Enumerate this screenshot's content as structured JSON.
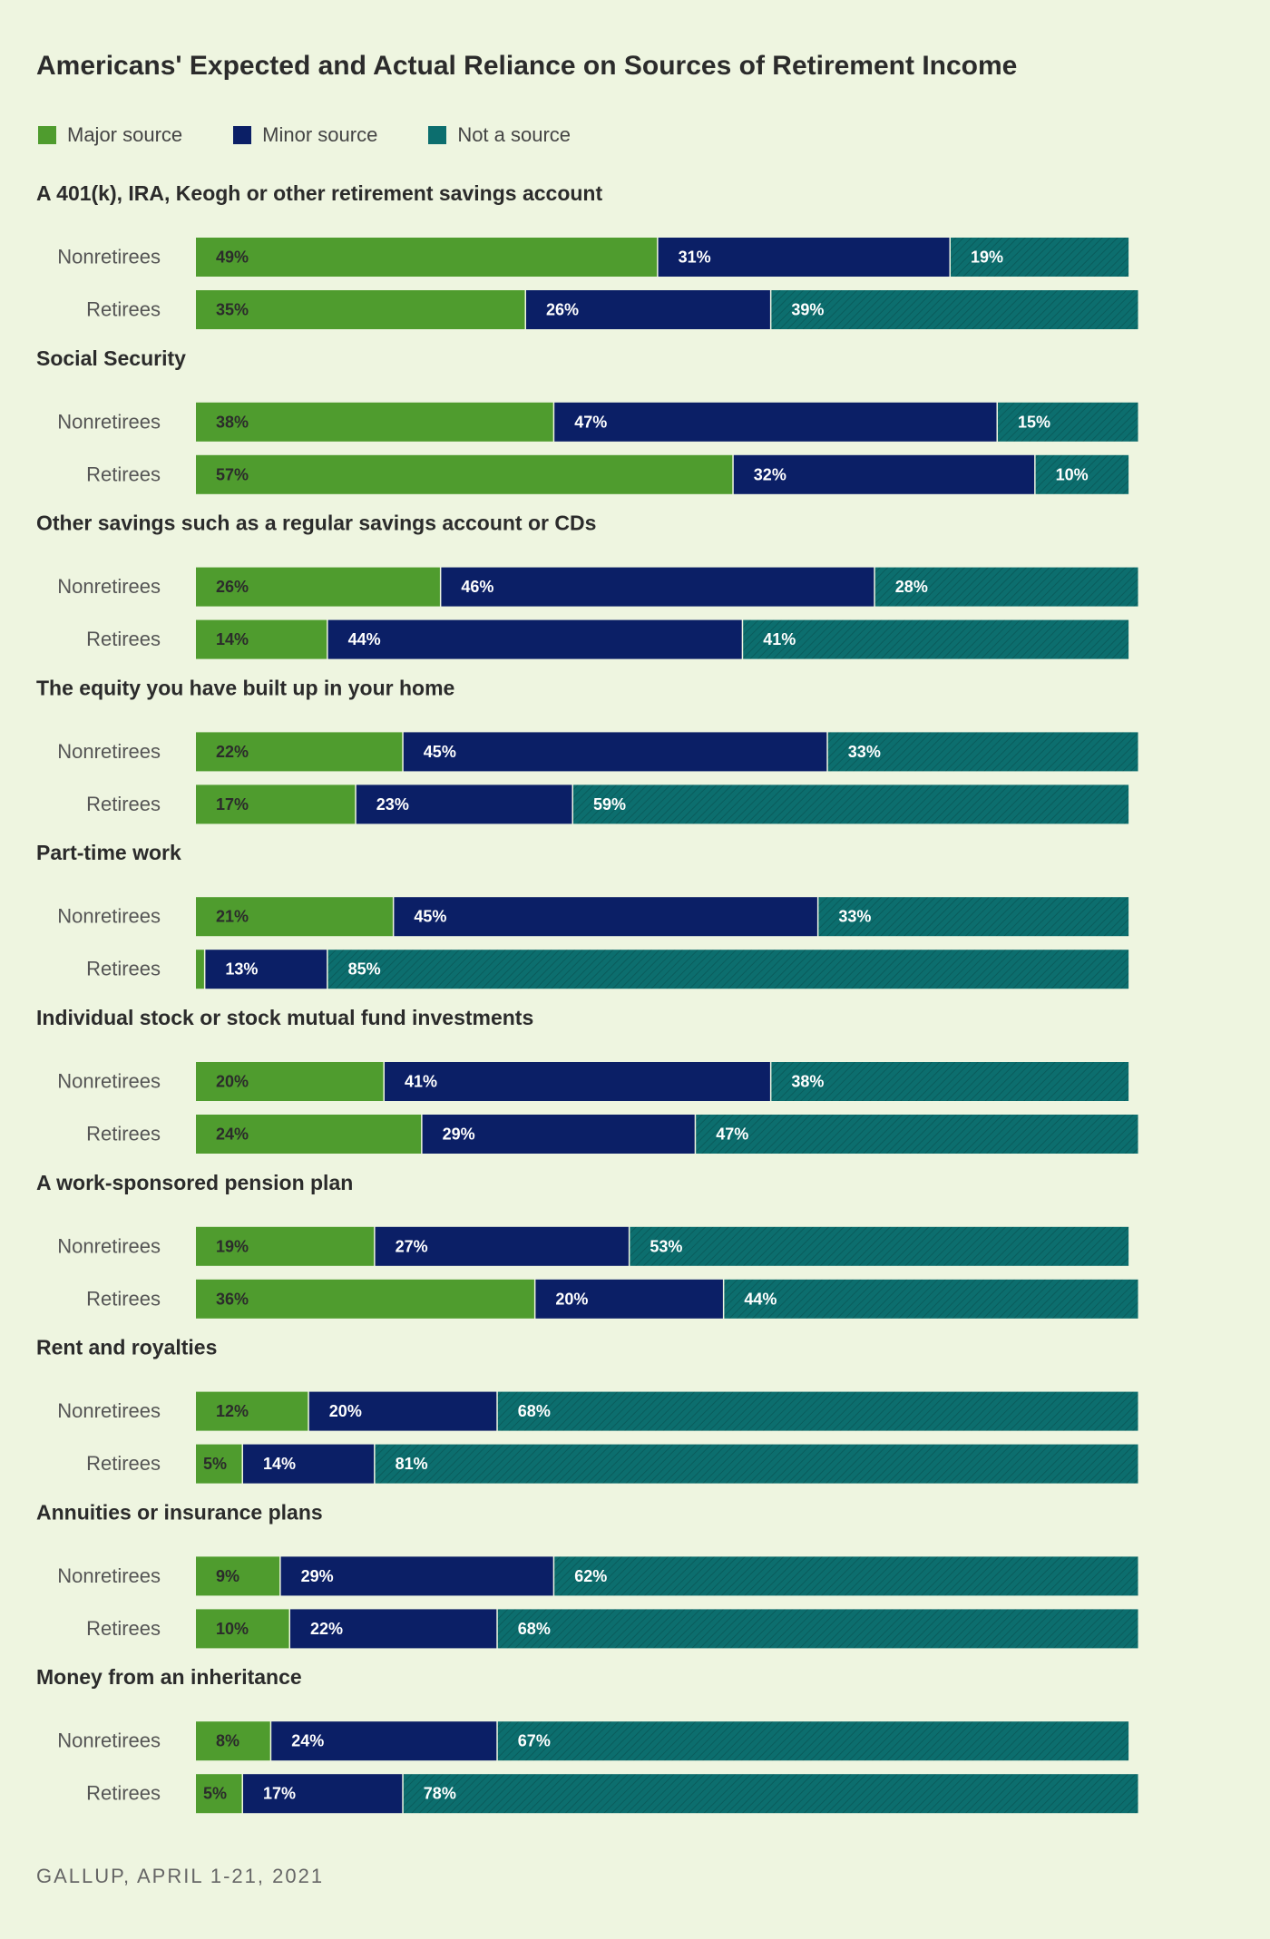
{
  "title": "Americans' Expected and Actual Reliance on Sources of Retirement Income",
  "source": "GALLUP, APRIL 1-21, 2021",
  "colors": {
    "major": "#4f9c2e",
    "minor": "#0b1f66",
    "not": "#0c6e6e",
    "background": "#eef5e0"
  },
  "legend": [
    {
      "label": "Major source",
      "color": "#4f9c2e"
    },
    {
      "label": "Minor source",
      "color": "#0b1f66"
    },
    {
      "label": "Not a source",
      "color": "#0c6e6e"
    }
  ],
  "chart_data": {
    "type": "bar",
    "orientation": "horizontal",
    "stacked": true,
    "series_names": [
      "Major source",
      "Minor source",
      "Not a source"
    ],
    "groups": [
      {
        "label": "A 401(k), IRA, Keogh or other retirement savings account",
        "rows": [
          {
            "label": "Nonretirees",
            "values": [
              49,
              31,
              19
            ]
          },
          {
            "label": "Retirees",
            "values": [
              35,
              26,
              39
            ]
          }
        ]
      },
      {
        "label": "Social Security",
        "rows": [
          {
            "label": "Nonretirees",
            "values": [
              38,
              47,
              15
            ]
          },
          {
            "label": "Retirees",
            "values": [
              57,
              32,
              10
            ]
          }
        ]
      },
      {
        "label": "Other savings such as a regular savings account or CDs",
        "rows": [
          {
            "label": "Nonretirees",
            "values": [
              26,
              46,
              28
            ]
          },
          {
            "label": "Retirees",
            "values": [
              14,
              44,
              41
            ]
          }
        ]
      },
      {
        "label": "The equity you have built up in your home",
        "rows": [
          {
            "label": "Nonretirees",
            "values": [
              22,
              45,
              33
            ]
          },
          {
            "label": "Retirees",
            "values": [
              17,
              23,
              59
            ]
          }
        ]
      },
      {
        "label": "Part-time work",
        "rows": [
          {
            "label": "Nonretirees",
            "values": [
              21,
              45,
              33
            ]
          },
          {
            "label": "Retirees",
            "values": [
              1,
              13,
              85
            ]
          }
        ]
      },
      {
        "label": "Individual stock or stock mutual fund investments",
        "rows": [
          {
            "label": "Nonretirees",
            "values": [
              20,
              41,
              38
            ]
          },
          {
            "label": "Retirees",
            "values": [
              24,
              29,
              47
            ]
          }
        ]
      },
      {
        "label": "A work-sponsored pension plan",
        "rows": [
          {
            "label": "Nonretirees",
            "values": [
              19,
              27,
              53
            ]
          },
          {
            "label": "Retirees",
            "values": [
              36,
              20,
              44
            ]
          }
        ]
      },
      {
        "label": "Rent and royalties",
        "rows": [
          {
            "label": "Nonretirees",
            "values": [
              12,
              20,
              68
            ]
          },
          {
            "label": "Retirees",
            "values": [
              5,
              14,
              81
            ]
          }
        ]
      },
      {
        "label": "Annuities or insurance plans",
        "rows": [
          {
            "label": "Nonretirees",
            "values": [
              9,
              29,
              62
            ]
          },
          {
            "label": "Retirees",
            "values": [
              10,
              22,
              68
            ]
          }
        ]
      },
      {
        "label": "Money from an inheritance",
        "rows": [
          {
            "label": "Nonretirees",
            "values": [
              8,
              24,
              67
            ]
          },
          {
            "label": "Retirees",
            "values": [
              5,
              17,
              78
            ]
          }
        ]
      }
    ],
    "unit": "%",
    "hidden_labels_below": 3
  }
}
